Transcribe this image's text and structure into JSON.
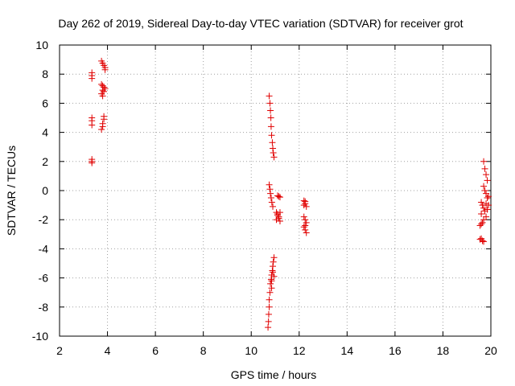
{
  "chart_data": {
    "type": "scatter",
    "title": "Day 262 of 2019, Sidereal Day-to-day VTEC variation (SDTVAR) for receiver grot",
    "xlabel": "GPS time / hours",
    "ylabel": "SDTVAR / TECUs",
    "xlim": [
      2,
      20
    ],
    "ylim": [
      -10,
      10
    ],
    "xticks": [
      2,
      4,
      6,
      8,
      10,
      12,
      14,
      16,
      18,
      20
    ],
    "yticks": [
      -10,
      -8,
      -6,
      -4,
      -2,
      0,
      2,
      4,
      6,
      8,
      10
    ],
    "grid": true,
    "marker": "+",
    "marker_color": "#e00000",
    "series": [
      {
        "name": "SDTVAR",
        "points": [
          [
            3.35,
            8.1
          ],
          [
            3.35,
            7.9
          ],
          [
            3.35,
            7.7
          ],
          [
            3.35,
            5.0
          ],
          [
            3.35,
            4.8
          ],
          [
            3.35,
            4.5
          ],
          [
            3.35,
            2.15
          ],
          [
            3.35,
            2.0
          ],
          [
            3.35,
            1.9
          ],
          [
            3.75,
            8.9
          ],
          [
            3.8,
            8.75
          ],
          [
            3.85,
            8.6
          ],
          [
            3.9,
            8.45
          ],
          [
            3.9,
            8.3
          ],
          [
            3.75,
            7.3
          ],
          [
            3.8,
            7.2
          ],
          [
            3.85,
            7.1
          ],
          [
            3.9,
            7.0
          ],
          [
            3.8,
            6.9
          ],
          [
            3.85,
            6.8
          ],
          [
            3.75,
            6.65
          ],
          [
            3.8,
            6.5
          ],
          [
            3.85,
            5.1
          ],
          [
            3.85,
            4.9
          ],
          [
            3.8,
            4.6
          ],
          [
            3.8,
            4.4
          ],
          [
            3.75,
            4.2
          ],
          [
            10.75,
            6.5
          ],
          [
            10.78,
            6.0
          ],
          [
            10.8,
            5.5
          ],
          [
            10.82,
            5.0
          ],
          [
            10.83,
            4.4
          ],
          [
            10.85,
            3.8
          ],
          [
            10.88,
            3.3
          ],
          [
            10.9,
            2.9
          ],
          [
            10.92,
            2.6
          ],
          [
            10.95,
            2.3
          ],
          [
            10.75,
            0.4
          ],
          [
            10.78,
            0.1
          ],
          [
            10.8,
            -0.2
          ],
          [
            10.83,
            -0.5
          ],
          [
            10.86,
            -0.8
          ],
          [
            10.9,
            -1.1
          ],
          [
            11.1,
            -0.35
          ],
          [
            11.15,
            -0.4
          ],
          [
            11.2,
            -0.45
          ],
          [
            11.05,
            -1.5
          ],
          [
            11.1,
            -1.7
          ],
          [
            11.15,
            -1.9
          ],
          [
            11.2,
            -2.1
          ],
          [
            11.1,
            -1.6
          ],
          [
            11.15,
            -1.8
          ],
          [
            11.2,
            -1.5
          ],
          [
            11.05,
            -2.0
          ],
          [
            10.95,
            -4.6
          ],
          [
            10.92,
            -4.9
          ],
          [
            10.9,
            -5.2
          ],
          [
            10.88,
            -5.5
          ],
          [
            10.85,
            -5.8
          ],
          [
            10.83,
            -6.1
          ],
          [
            10.8,
            -6.4
          ],
          [
            10.85,
            -6.7
          ],
          [
            10.78,
            -7.0
          ],
          [
            10.75,
            -7.5
          ],
          [
            10.75,
            -8.0
          ],
          [
            10.73,
            -8.5
          ],
          [
            10.72,
            -9.0
          ],
          [
            10.7,
            -9.4
          ],
          [
            10.9,
            -5.6
          ],
          [
            10.95,
            -5.9
          ],
          [
            10.85,
            -6.2
          ],
          [
            12.2,
            -0.7
          ],
          [
            12.25,
            -0.9
          ],
          [
            12.3,
            -1.1
          ],
          [
            12.2,
            -1.0
          ],
          [
            12.25,
            -0.75
          ],
          [
            12.2,
            -1.8
          ],
          [
            12.25,
            -2.0
          ],
          [
            12.3,
            -2.2
          ],
          [
            12.2,
            -2.5
          ],
          [
            12.25,
            -2.7
          ],
          [
            12.3,
            -2.9
          ],
          [
            12.25,
            -2.4
          ],
          [
            19.7,
            2.0
          ],
          [
            19.75,
            1.5
          ],
          [
            19.8,
            1.1
          ],
          [
            19.85,
            0.7
          ],
          [
            19.7,
            0.3
          ],
          [
            19.75,
            0.0
          ],
          [
            19.8,
            -0.2
          ],
          [
            19.85,
            -0.5
          ],
          [
            19.6,
            -0.8
          ],
          [
            19.65,
            -1.0
          ],
          [
            19.7,
            -1.2
          ],
          [
            19.75,
            -1.4
          ],
          [
            19.6,
            -1.6
          ],
          [
            19.8,
            -1.8
          ],
          [
            19.7,
            -2.0
          ],
          [
            19.65,
            -2.2
          ],
          [
            19.55,
            -2.4
          ],
          [
            19.6,
            -2.3
          ],
          [
            19.6,
            -3.3
          ],
          [
            19.65,
            -3.45
          ],
          [
            19.7,
            -3.5
          ],
          [
            19.55,
            -3.35
          ],
          [
            19.9,
            -1.0
          ],
          [
            19.85,
            -1.3
          ],
          [
            19.9,
            -0.4
          ],
          [
            19.8,
            -0.9
          ]
        ]
      }
    ]
  }
}
